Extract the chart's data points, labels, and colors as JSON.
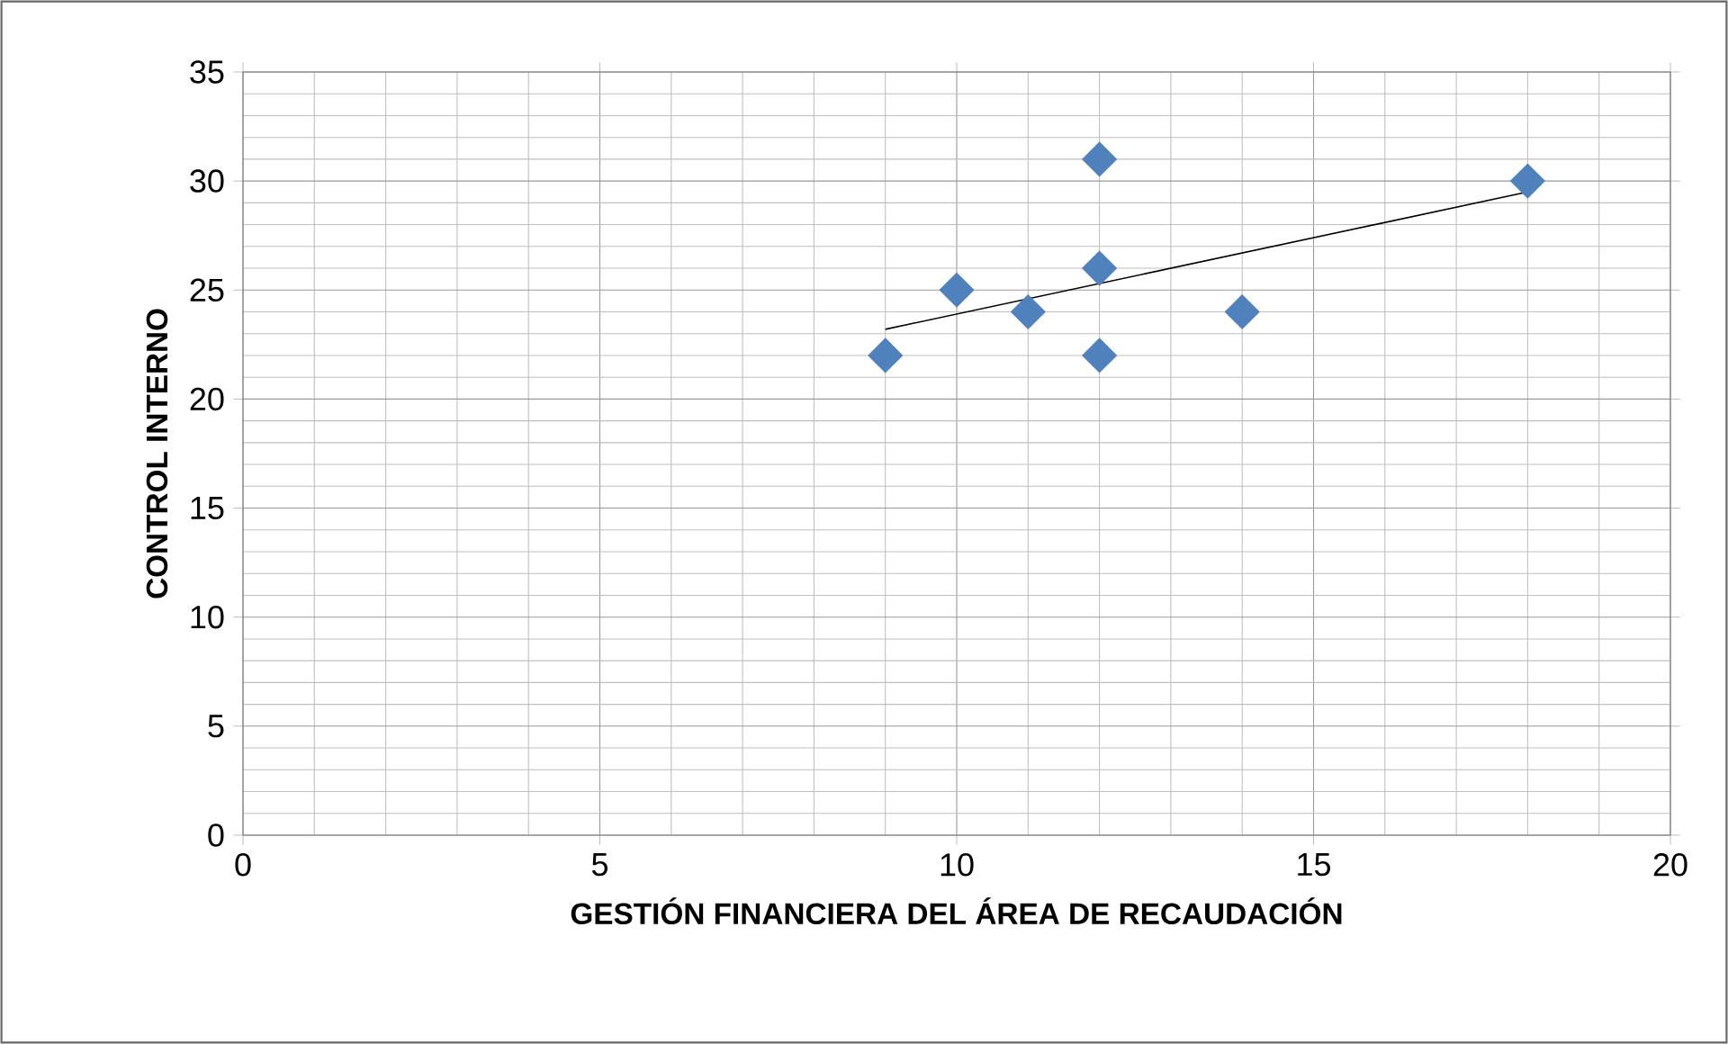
{
  "chart_data": {
    "type": "scatter",
    "xlabel": "GESTIÓN FINANCIERA DEL ÁREA DE RECAUDACIÓN",
    "ylabel": "CONTROL INTERNO",
    "x": [
      9,
      10,
      11,
      12,
      12,
      12,
      14,
      18
    ],
    "series": [
      {
        "color": "#4f81bd",
        "values": [
          22,
          25,
          24,
          31,
          26,
          22,
          24,
          30
        ]
      },
      {
        "type": "line",
        "marker": "none",
        "color": "#000000",
        "x": [
          9,
          18
        ],
        "values": [
          23.2,
          29.5
        ]
      }
    ],
    "marker": "diamond",
    "xlim": [
      0,
      20
    ],
    "ylim": [
      0,
      35
    ],
    "xticks": [
      0,
      5,
      10,
      15,
      20
    ],
    "yticks": [
      0,
      5,
      10,
      15,
      20,
      25,
      30,
      35
    ],
    "grid": true
  }
}
